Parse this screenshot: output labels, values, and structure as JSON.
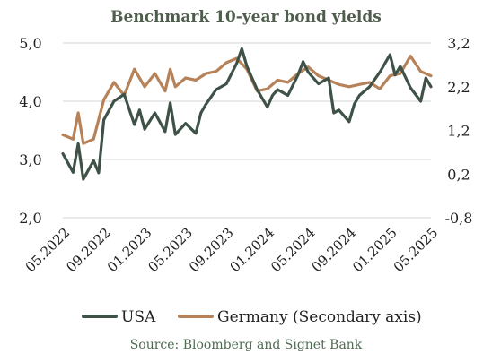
{
  "chart_data": {
    "type": "line",
    "title": "Benchmark 10-year bond yields",
    "source": "Source: Bloomberg and Signet Bank",
    "x_tick_labels": [
      "05.2022",
      "09.2022",
      "01.2023",
      "05.2023",
      "09.2023",
      "01.2024",
      "05.2024",
      "09.2024",
      "01.2025",
      "05.2025"
    ],
    "x_range": [
      "2022-05",
      "2025-05"
    ],
    "y_left": {
      "range": [
        2.0,
        5.0
      ],
      "ticks": [
        "2,0",
        "3,0",
        "4,0",
        "5,0"
      ],
      "tick_values": [
        2.0,
        3.0,
        4.0,
        5.0
      ]
    },
    "y_right": {
      "range": [
        -0.8,
        3.2
      ],
      "ticks": [
        "-0,8",
        "0,2",
        "1,2",
        "2,2",
        "3,2"
      ],
      "tick_values": [
        -0.8,
        0.2,
        1.2,
        2.2,
        3.2
      ]
    },
    "grid": "horizontal",
    "legend_position": "bottom",
    "series": [
      {
        "name": "USA",
        "axis": "left",
        "color": "#3f5248",
        "x": [
          "2022-05",
          "2022-06",
          "2022-06",
          "2022-07",
          "2022-08",
          "2022-08",
          "2022-09",
          "2022-10",
          "2022-11",
          "2022-12",
          "2022-12",
          "2023-01",
          "2023-02",
          "2023-03",
          "2023-03",
          "2023-04",
          "2023-05",
          "2023-06",
          "2023-06",
          "2023-07",
          "2023-08",
          "2023-09",
          "2023-10",
          "2023-10",
          "2023-11",
          "2023-12",
          "2024-01",
          "2024-01",
          "2024-02",
          "2024-03",
          "2024-04",
          "2024-04",
          "2024-05",
          "2024-06",
          "2024-07",
          "2024-07",
          "2024-08",
          "2024-09",
          "2024-09",
          "2024-10",
          "2024-11",
          "2024-12",
          "2025-01",
          "2025-01",
          "2025-02",
          "2025-03",
          "2025-04",
          "2025-04",
          "2025-05"
        ],
        "values": [
          3.1,
          2.78,
          3.27,
          2.66,
          2.98,
          2.77,
          3.68,
          4.0,
          4.12,
          3.6,
          3.85,
          3.52,
          3.8,
          3.48,
          3.97,
          3.43,
          3.62,
          3.45,
          3.8,
          3.95,
          4.2,
          4.3,
          4.65,
          4.9,
          4.6,
          4.2,
          3.9,
          4.1,
          4.2,
          4.1,
          4.45,
          4.68,
          4.5,
          4.3,
          4.4,
          3.8,
          3.85,
          3.65,
          3.95,
          4.1,
          4.25,
          4.5,
          4.8,
          4.45,
          4.6,
          4.23,
          4.0,
          4.4,
          4.25
        ]
      },
      {
        "name": "Germany (Secondary axis)",
        "axis": "right",
        "color": "#b5825a",
        "x": [
          "2022-05",
          "2022-06",
          "2022-06",
          "2022-07",
          "2022-08",
          "2022-09",
          "2022-10",
          "2022-11",
          "2022-12",
          "2023-01",
          "2023-02",
          "2023-03",
          "2023-03",
          "2023-04",
          "2023-05",
          "2023-06",
          "2023-07",
          "2023-08",
          "2023-09",
          "2023-10",
          "2023-11",
          "2023-12",
          "2024-01",
          "2024-02",
          "2024-03",
          "2024-04",
          "2024-05",
          "2024-06",
          "2024-07",
          "2024-08",
          "2024-09",
          "2024-10",
          "2024-11",
          "2024-12",
          "2025-01",
          "2025-02",
          "2025-03",
          "2025-04",
          "2025-05"
        ],
        "values": [
          1.1,
          1.0,
          1.6,
          0.9,
          1.0,
          1.9,
          2.3,
          2.0,
          2.6,
          2.2,
          2.5,
          2.1,
          2.6,
          2.2,
          2.4,
          2.35,
          2.5,
          2.55,
          2.75,
          2.85,
          2.6,
          2.1,
          2.15,
          2.35,
          2.3,
          2.5,
          2.65,
          2.45,
          2.35,
          2.25,
          2.2,
          2.25,
          2.3,
          2.15,
          2.45,
          2.5,
          2.9,
          2.55,
          2.45
        ]
      }
    ]
  }
}
